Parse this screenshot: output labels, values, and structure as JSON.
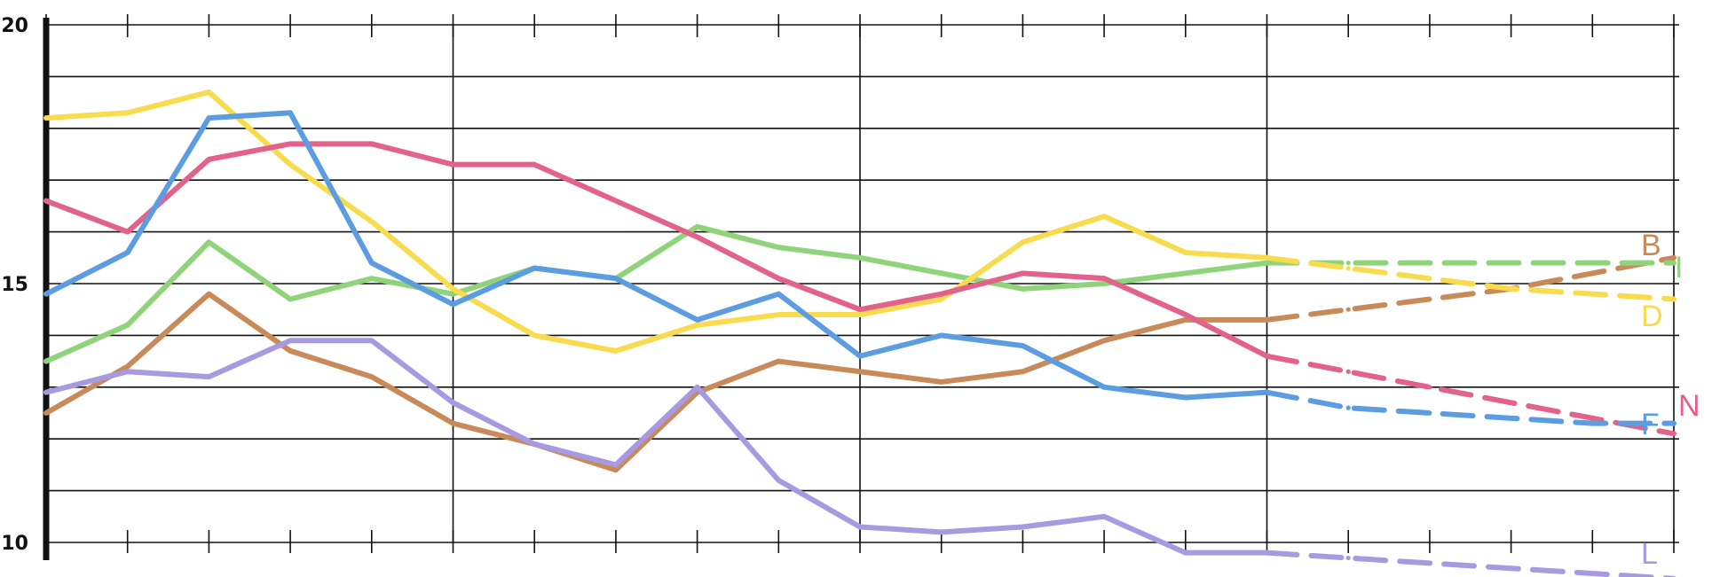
{
  "chart_data": {
    "type": "line",
    "title": "",
    "xlabel": "",
    "ylabel": "",
    "x": [
      0,
      1,
      2,
      3,
      4,
      5,
      6,
      7,
      8,
      9,
      10,
      11,
      12,
      13,
      14,
      15,
      16,
      17,
      18,
      19,
      20
    ],
    "xlim": [
      0,
      20
    ],
    "ylim": [
      10,
      20
    ],
    "y_ticks": [
      10,
      15,
      20
    ],
    "y_tick_labels": [
      "10",
      "15",
      "20"
    ],
    "grid": true,
    "solid_until_index": 15,
    "series": [
      {
        "name": "B",
        "color": "#c98a5a",
        "values": [
          12.5,
          13.4,
          14.8,
          13.7,
          13.2,
          12.3,
          11.9,
          11.4,
          12.9,
          13.5,
          13.3,
          13.1,
          13.3,
          13.9,
          14.3,
          14.3,
          14.5,
          14.7,
          14.9,
          15.2,
          15.5
        ]
      },
      {
        "name": "I",
        "color": "#8fd47a",
        "values": [
          13.5,
          14.2,
          15.8,
          14.7,
          15.1,
          14.8,
          15.3,
          15.1,
          16.1,
          15.7,
          15.5,
          15.2,
          14.9,
          15.0,
          15.2,
          15.4,
          15.4,
          15.4,
          15.4,
          15.4,
          15.4
        ]
      },
      {
        "name": "D",
        "color": "#f8dc50",
        "values": [
          18.2,
          18.3,
          18.7,
          17.3,
          16.2,
          14.9,
          14.0,
          13.7,
          14.2,
          14.4,
          14.4,
          14.7,
          15.8,
          16.3,
          15.6,
          15.5,
          15.3,
          15.1,
          14.9,
          14.8,
          14.7
        ]
      },
      {
        "name": "N",
        "color": "#e2628a",
        "values": [
          16.6,
          16.0,
          17.4,
          17.7,
          17.7,
          17.3,
          17.3,
          16.6,
          15.9,
          15.1,
          14.5,
          14.8,
          15.2,
          15.1,
          14.4,
          13.6,
          13.3,
          13.0,
          12.7,
          12.4,
          12.1
        ]
      },
      {
        "name": "F",
        "color": "#5b9de0",
        "values": [
          14.8,
          15.6,
          18.2,
          18.3,
          15.4,
          14.6,
          15.3,
          15.1,
          14.3,
          14.8,
          13.6,
          14.0,
          13.8,
          13.0,
          12.8,
          12.9,
          12.6,
          12.5,
          12.4,
          12.3,
          12.3
        ]
      },
      {
        "name": "L",
        "color": "#a79ae0",
        "values": [
          12.9,
          13.3,
          13.2,
          13.9,
          13.9,
          12.7,
          11.9,
          11.5,
          13.0,
          11.2,
          10.3,
          10.2,
          10.3,
          10.5,
          9.8,
          9.8,
          9.7,
          9.6,
          9.5,
          9.4,
          9.3
        ]
      }
    ],
    "end_labels": [
      {
        "text": "B",
        "series": "B",
        "color": "#c98a5a"
      },
      {
        "text": "I",
        "series": "I",
        "color": "#8fd47a"
      },
      {
        "text": "D",
        "series": "D",
        "color": "#f8dc50"
      },
      {
        "text": "N",
        "series": "N",
        "color": "#e2628a"
      },
      {
        "text": "F",
        "series": "F",
        "color": "#5b9de0"
      },
      {
        "text": "L",
        "series": "L",
        "color": "#a79ae0"
      }
    ]
  }
}
